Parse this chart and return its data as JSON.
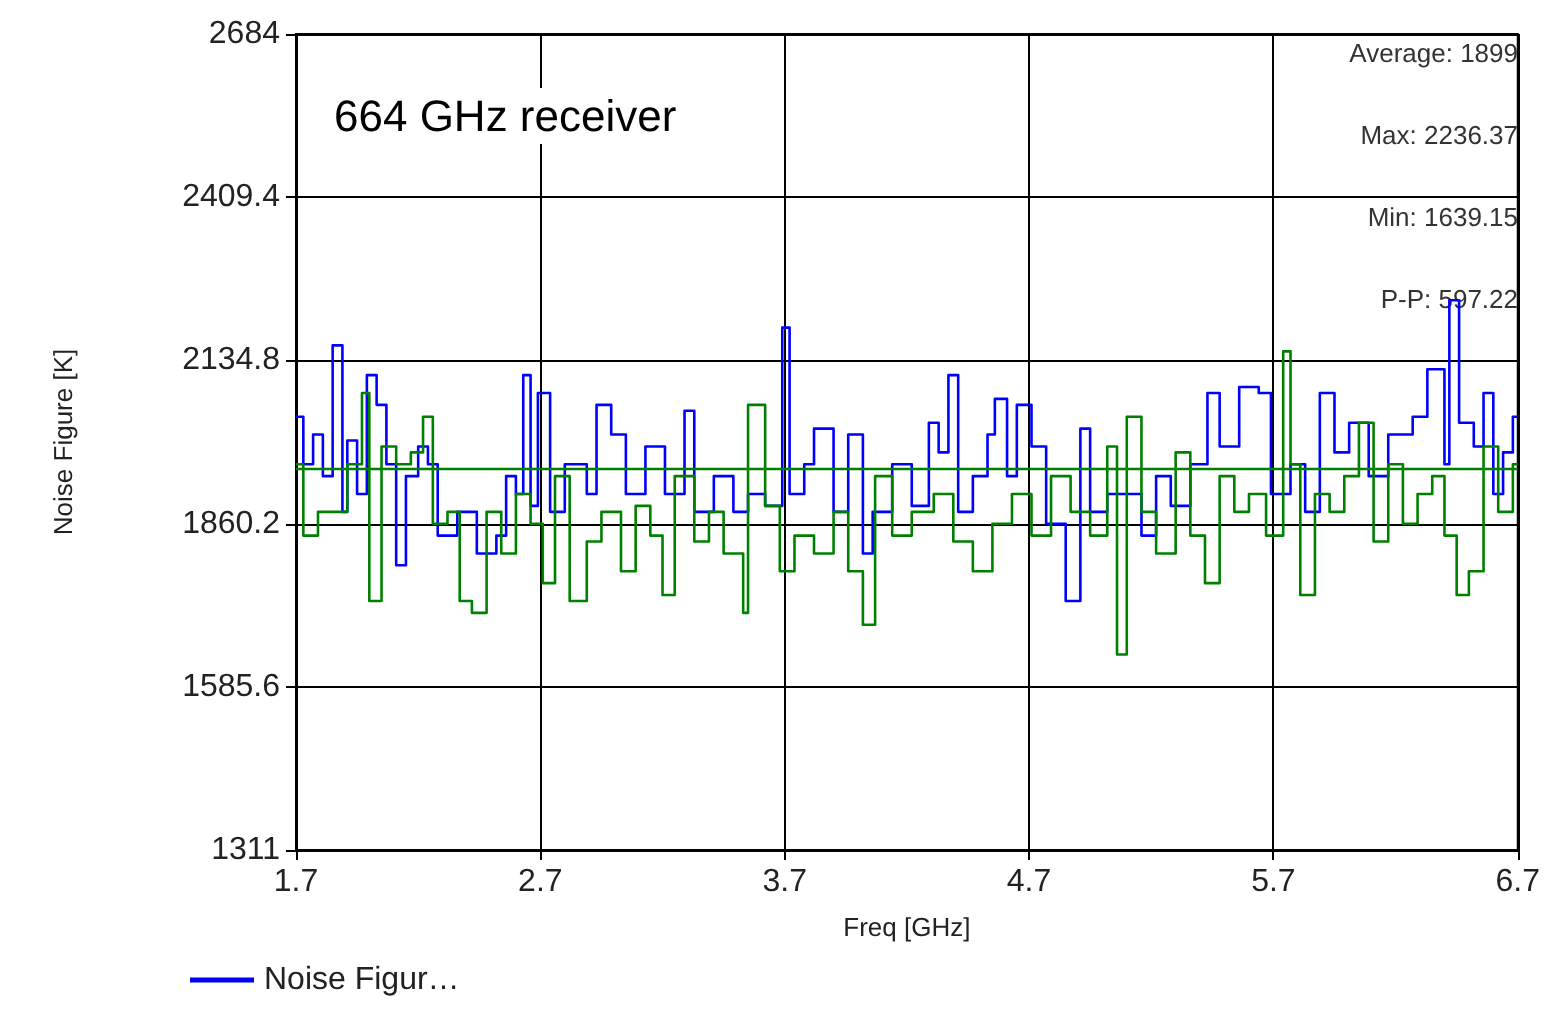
{
  "chart_data": {
    "type": "step",
    "title": "664 GHz receiver",
    "xlabel": "Freq [GHz]",
    "ylabel": "Noise Figure [K]",
    "xlim": [
      1.7,
      6.7
    ],
    "xticks": [
      1.7,
      2.7,
      3.7,
      4.7,
      5.7,
      6.7
    ],
    "ylim": [
      1311,
      2684
    ],
    "yticks": [
      1311,
      1585.6,
      1860.2,
      2134.8,
      2409.4,
      2684
    ],
    "grid": true,
    "legend": "bottom left",
    "marker": "none",
    "line_style": "solid",
    "annotations": [
      "Average: 1899",
      "Max: 2236.37",
      "Min: 1639.15",
      "P-P: 597.22"
    ],
    "ref_lines": [
      {
        "axis": "y",
        "value": 1953,
        "label": null,
        "color": "#008000"
      }
    ],
    "series": [
      {
        "name": "Noise Figur…",
        "color": "#0000ff",
        "x": [
          1.7,
          1.73,
          1.77,
          1.81,
          1.85,
          1.89,
          1.91,
          1.95,
          1.99,
          2.03,
          2.07,
          2.11,
          2.15,
          2.2,
          2.24,
          2.28,
          2.36,
          2.44,
          2.52,
          2.56,
          2.6,
          2.63,
          2.66,
          2.69,
          2.74,
          2.8,
          2.89,
          2.93,
          2.99,
          3.05,
          3.13,
          3.21,
          3.29,
          3.33,
          3.41,
          3.49,
          3.55,
          3.62,
          3.69,
          3.72,
          3.78,
          3.82,
          3.9,
          3.96,
          4.02,
          4.06,
          4.14,
          4.22,
          4.29,
          4.33,
          4.37,
          4.41,
          4.47,
          4.53,
          4.56,
          4.61,
          4.65,
          4.71,
          4.77,
          4.85,
          4.91,
          4.95,
          5.02,
          5.08,
          5.16,
          5.22,
          5.28,
          5.36,
          5.43,
          5.48,
          5.56,
          5.64,
          5.69,
          5.77,
          5.83,
          5.89,
          5.95,
          6.01,
          6.09,
          6.17,
          6.27,
          6.33,
          6.4,
          6.42,
          6.46,
          6.52,
          6.56,
          6.6,
          6.64,
          6.68,
          6.7
        ],
        "values": [
          2040,
          1960,
          2010,
          1940,
          2160,
          1880,
          2000,
          1910,
          2110,
          2060,
          1960,
          1790,
          1940,
          1990,
          1960,
          1840,
          1880,
          1810,
          1840,
          1940,
          1910,
          2110,
          1890,
          2080,
          1880,
          1960,
          1910,
          2060,
          2010,
          1910,
          1990,
          1910,
          2050,
          1880,
          1940,
          1880,
          1910,
          1890,
          2190,
          1910,
          1960,
          2020,
          1880,
          2010,
          1810,
          1880,
          1960,
          1890,
          2030,
          1980,
          2110,
          1880,
          1940,
          2010,
          2070,
          1940,
          2060,
          1990,
          1860,
          1730,
          2020,
          1880,
          1910,
          1910,
          1840,
          1940,
          1890,
          1960,
          2080,
          1990,
          2090,
          2080,
          1910,
          1960,
          1880,
          2080,
          1980,
          2030,
          1940,
          2010,
          2040,
          2120,
          1960,
          2236,
          2030,
          1990,
          2080,
          1910,
          1980,
          2040,
          2040
        ]
      },
      {
        "color": "#008000",
        "x": [
          1.7,
          1.73,
          1.79,
          1.85,
          1.91,
          1.97,
          2.0,
          2.05,
          2.11,
          2.17,
          2.22,
          2.26,
          2.32,
          2.37,
          2.42,
          2.48,
          2.54,
          2.6,
          2.66,
          2.71,
          2.76,
          2.82,
          2.89,
          2.95,
          3.03,
          3.09,
          3.15,
          3.2,
          3.25,
          3.33,
          3.39,
          3.45,
          3.53,
          3.55,
          3.62,
          3.68,
          3.74,
          3.82,
          3.9,
          3.96,
          4.02,
          4.07,
          4.14,
          4.22,
          4.31,
          4.39,
          4.47,
          4.55,
          4.63,
          4.71,
          4.79,
          4.87,
          4.95,
          5.02,
          5.06,
          5.1,
          5.16,
          5.22,
          5.3,
          5.36,
          5.42,
          5.48,
          5.54,
          5.6,
          5.67,
          5.74,
          5.77,
          5.81,
          5.87,
          5.93,
          5.99,
          6.05,
          6.11,
          6.17,
          6.23,
          6.29,
          6.35,
          6.4,
          6.45,
          6.5,
          6.56,
          6.62,
          6.68,
          6.7
        ],
        "values": [
          1960,
          1840,
          1880,
          1880,
          1960,
          2080,
          1730,
          1990,
          1960,
          1980,
          2040,
          1860,
          1880,
          1730,
          1710,
          1880,
          1810,
          1910,
          1860,
          1760,
          1940,
          1730,
          1830,
          1880,
          1780,
          1890,
          1840,
          1740,
          1940,
          1830,
          1880,
          1810,
          1710,
          2060,
          1890,
          1780,
          1840,
          1810,
          1880,
          1780,
          1690,
          1940,
          1840,
          1880,
          1910,
          1830,
          1780,
          1860,
          1910,
          1840,
          1940,
          1880,
          1840,
          1990,
          1640,
          2040,
          1880,
          1810,
          1980,
          1840,
          1760,
          1940,
          1880,
          1910,
          1840,
          2150,
          1960,
          1740,
          1910,
          1880,
          1940,
          2030,
          1830,
          1960,
          1860,
          1910,
          1940,
          1840,
          1740,
          1780,
          1990,
          1880,
          1960,
          1960
        ]
      }
    ]
  }
}
